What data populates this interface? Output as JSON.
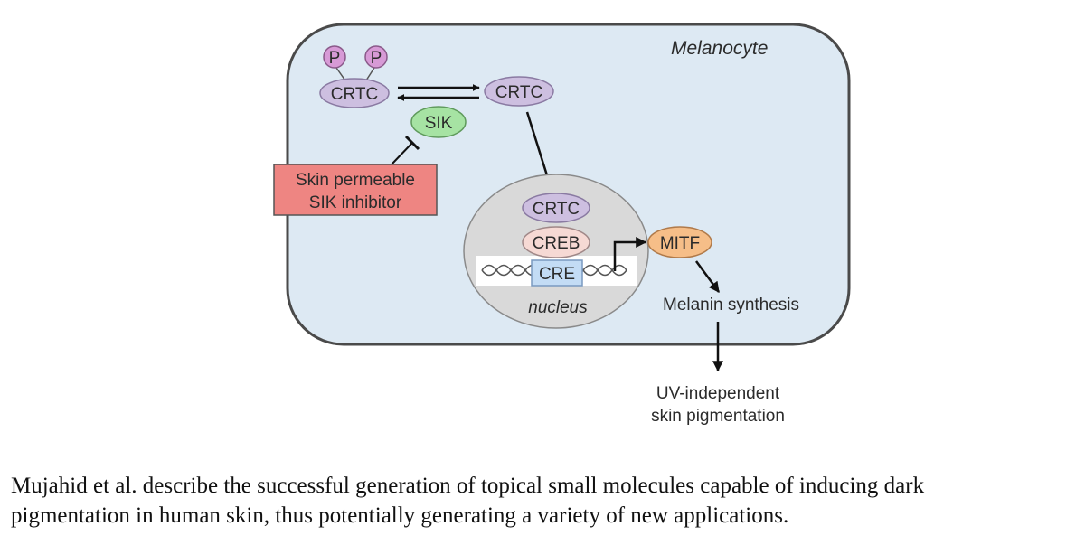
{
  "diagram": {
    "cell_label": "Melanocyte",
    "phospho_left": "P",
    "phospho_right": "P",
    "crtc_phospho": "CRTC",
    "crtc_free": "CRTC",
    "sik": "SIK",
    "inhibitor_line1": "Skin permeable",
    "inhibitor_line2": "SIK inhibitor",
    "nucleus_crtc": "CRTC",
    "creb": "CREB",
    "cre": "CRE",
    "nucleus_label": "nucleus",
    "mitf": "MITF",
    "melanin": "Melanin synthesis",
    "outcome_line1": "UV-independent",
    "outcome_line2": "skin pigmentation",
    "colors": {
      "cell_fill": "#dde9f3",
      "nucleus_fill": "#d9d9d9",
      "crtc_fill": "#cdbfe0",
      "phospho_fill": "#d79ad6",
      "sik_fill": "#a6e3a3",
      "creb_fill": "#f6d9d4",
      "cre_fill": "#c3dcf5",
      "mitf_fill": "#f6be88",
      "inhibitor_fill": "#ee8582"
    }
  },
  "caption": {
    "line1": "Mujahid et al. describe the successful generation of topical small molecules capable of inducing dark",
    "line2": "pigmentation in human skin, thus potentially generating a variety of new applications."
  }
}
